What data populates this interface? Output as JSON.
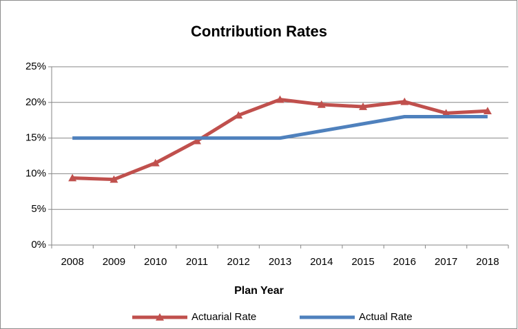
{
  "chart_data": {
    "type": "line",
    "title": "Contribution Rates",
    "x_label": "Plan Year",
    "categories": [
      "2008",
      "2009",
      "2010",
      "2011",
      "2012",
      "2013",
      "2014",
      "2015",
      "2016",
      "2017",
      "2018"
    ],
    "series": [
      {
        "name": "Actuarial Rate",
        "color": "#c0504d",
        "marker": "triangle",
        "values": [
          9.4,
          9.2,
          11.5,
          14.6,
          18.2,
          20.4,
          19.7,
          19.4,
          20.1,
          18.5,
          18.8
        ]
      },
      {
        "name": "Actual Rate",
        "color": "#4f81bd",
        "values": [
          15,
          15,
          15,
          15,
          15,
          15,
          16,
          17,
          18,
          18,
          18
        ]
      }
    ],
    "ylim": [
      0,
      25
    ],
    "yticks": [
      {
        "value": 0,
        "label": "0%"
      },
      {
        "value": 5,
        "label": "5%"
      },
      {
        "value": 10,
        "label": "10%"
      },
      {
        "value": 15,
        "label": "15%"
      },
      {
        "value": 20,
        "label": "20%"
      },
      {
        "value": 25,
        "label": "25%"
      }
    ],
    "grid": true,
    "legend": "bottom"
  }
}
